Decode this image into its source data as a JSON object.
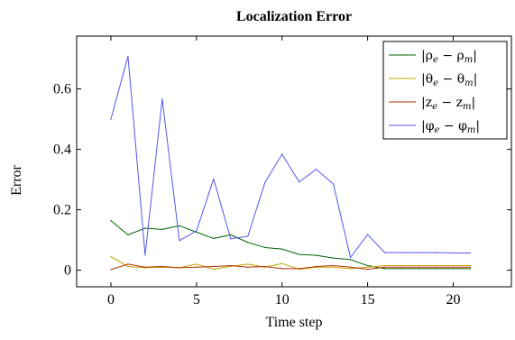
{
  "chart_data": {
    "type": "line",
    "title": "Localization Error",
    "xlabel": "Time step",
    "ylabel": "Error",
    "xlim": [
      -2.0,
      23.4
    ],
    "ylim": [
      -0.055,
      0.775
    ],
    "xticks": [
      0,
      5,
      10,
      15,
      20
    ],
    "yticks": [
      0,
      0.2,
      0.4,
      0.6
    ],
    "ytick_labels": [
      "0",
      "0.2",
      "0.4",
      "0.6"
    ],
    "grid": false,
    "legend_position": "top-right",
    "x": [
      0,
      1,
      2,
      3,
      4,
      5,
      6,
      7,
      8,
      9,
      10,
      11,
      12,
      13,
      14,
      15,
      16,
      17,
      18,
      19,
      20,
      21
    ],
    "series": [
      {
        "name": "|ρe − ρm|",
        "name_main": "|ρ",
        "name_sub1": "e",
        "name_mid": " − ρ",
        "name_sub2": "m",
        "name_end": "|",
        "color": "#006400",
        "values": [
          0.164,
          0.117,
          0.139,
          0.135,
          0.147,
          0.126,
          0.105,
          0.117,
          0.092,
          0.075,
          0.07,
          0.052,
          0.049,
          0.04,
          0.035,
          0.015,
          0.005,
          0.005,
          0.005,
          0.005,
          0.005,
          0.005
        ]
      },
      {
        "name": "|θe − θm|",
        "name_main": "|θ",
        "name_sub1": "e",
        "name_mid": " − θ",
        "name_sub2": "m",
        "name_end": "|",
        "color": "#c8a000",
        "values": [
          0.045,
          0.012,
          0.008,
          0.01,
          0.008,
          0.02,
          0.003,
          0.013,
          0.02,
          0.01,
          0.022,
          0.003,
          0.01,
          0.01,
          0.005,
          0.01,
          0.015,
          0.015,
          0.015,
          0.015,
          0.015,
          0.015
        ]
      },
      {
        "name": "|ze − zm|",
        "name_main": "|z",
        "name_sub1": "e",
        "name_mid": " − z",
        "name_sub2": "m",
        "name_end": "|",
        "color": "#b03000",
        "values": [
          0.002,
          0.02,
          0.01,
          0.012,
          0.008,
          0.01,
          0.012,
          0.015,
          0.01,
          0.012,
          0.005,
          0.005,
          0.012,
          0.015,
          0.01,
          0.003,
          0.01,
          0.01,
          0.01,
          0.01,
          0.01,
          0.01
        ]
      },
      {
        "name": "|φe − φm|",
        "name_main": "|φ",
        "name_sub1": "e",
        "name_mid": " − φ",
        "name_sub2": "m",
        "name_end": "|",
        "color": "#5555ee",
        "values": [
          0.5,
          0.708,
          0.05,
          0.567,
          0.098,
          0.13,
          0.302,
          0.104,
          0.112,
          0.29,
          0.384,
          0.292,
          0.334,
          0.285,
          0.042,
          0.118,
          0.058,
          0.058,
          0.058,
          0.058,
          0.057,
          0.057
        ]
      }
    ]
  }
}
